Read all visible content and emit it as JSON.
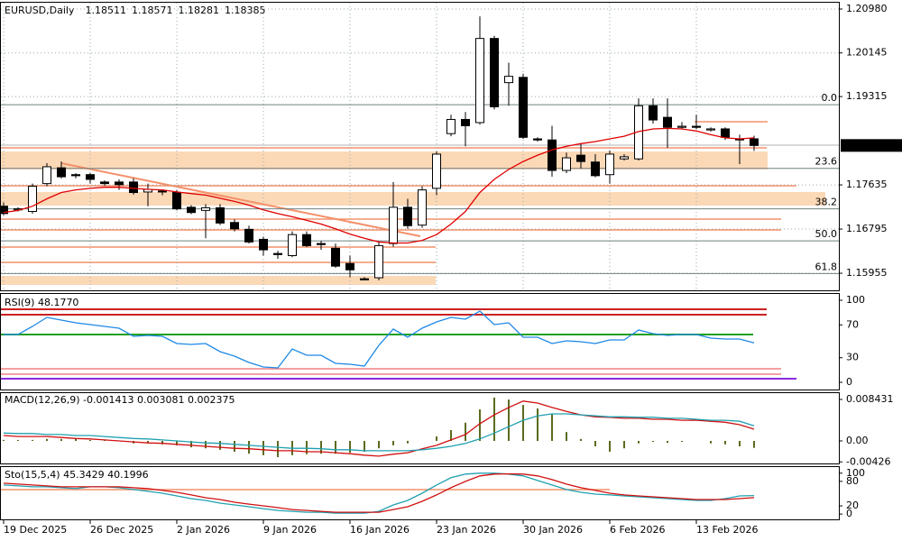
{
  "chart_data": [
    {
      "type": "candlestick",
      "title": "EURUSD,Daily",
      "categories": [
        "19 Dec 2025",
        null,
        null,
        null,
        null,
        null,
        "26 Dec 2025",
        null,
        null,
        null,
        null,
        null,
        "2 Jan 2026",
        null,
        null,
        null,
        null,
        null,
        "9 Jan 2026",
        null,
        null,
        null,
        null,
        null,
        "16 Jan 2026",
        null,
        null,
        null,
        null,
        null,
        "23 Jan 2026",
        null,
        null,
        null,
        null,
        null,
        "30 Jan 2026",
        null,
        null,
        null,
        null,
        null,
        "6 Feb 2026",
        null,
        null,
        null,
        null,
        null,
        "13 Feb 2026",
        null,
        null,
        null,
        null
      ],
      "open": [
        1.1723,
        1.1716,
        1.1713,
        1.1766,
        1.1796,
        1.1783,
        1.1783,
        1.1769,
        1.1769,
        1.1769,
        1.175,
        1.1752,
        1.1749,
        1.1721,
        1.1715,
        1.172,
        1.1692,
        1.1679,
        1.166,
        1.1633,
        1.1629,
        1.1669,
        1.1652,
        1.1643,
        1.1614,
        1.1585,
        1.1587,
        1.1652,
        1.1721,
        1.1687,
        1.1757,
        1.1861,
        1.1888,
        1.1882,
        1.2042,
        1.1958,
        1.1968,
        1.1851,
        1.1849,
        1.1791,
        1.182,
        1.1807,
        1.1783,
        1.1813,
        1.1813,
        1.1914,
        1.1892,
        1.1873,
        1.1875,
        1.1868,
        1.187,
        1.1851,
        1.18511
      ],
      "high": [
        1.173,
        1.1721,
        1.1766,
        1.1805,
        1.1808,
        1.1786,
        1.1786,
        1.1772,
        1.1774,
        1.1776,
        1.1766,
        1.1755,
        1.1754,
        1.1725,
        1.1727,
        1.1727,
        1.1698,
        1.1686,
        1.1665,
        1.1638,
        1.1675,
        1.1675,
        1.1657,
        1.1652,
        1.1629,
        1.1588,
        1.1655,
        1.1769,
        1.1737,
        1.1761,
        1.1827,
        1.1897,
        1.1902,
        1.2084,
        1.2047,
        1.1996,
        1.1975,
        1.1854,
        1.1876,
        1.1825,
        1.1842,
        1.1822,
        1.1829,
        1.1822,
        1.1928,
        1.1928,
        1.1928,
        1.1883,
        1.1897,
        1.1873,
        1.1873,
        1.1859,
        1.18571
      ],
      "low": [
        1.1706,
        1.1713,
        1.1709,
        1.1761,
        1.1776,
        1.1776,
        1.1766,
        1.1762,
        1.1754,
        1.1745,
        1.1723,
        1.1744,
        1.1715,
        1.1708,
        1.1662,
        1.1687,
        1.1675,
        1.1652,
        1.1629,
        1.1623,
        1.1626,
        1.1645,
        1.164,
        1.1606,
        1.1588,
        1.1582,
        1.1582,
        1.1646,
        1.168,
        1.1682,
        1.1744,
        1.1856,
        1.1837,
        1.1878,
        1.1907,
        1.1914,
        1.1851,
        1.1846,
        1.1779,
        1.1786,
        1.1795,
        1.1778,
        1.1766,
        1.181,
        1.181,
        1.188,
        1.1834,
        1.187,
        1.187,
        1.1865,
        1.1849,
        1.1803,
        1.18281
      ],
      "close": [
        1.1709,
        1.1718,
        1.1761,
        1.1798,
        1.1779,
        1.1781,
        1.1774,
        1.1766,
        1.1764,
        1.1749,
        1.1755,
        1.175,
        1.1718,
        1.1711,
        1.172,
        1.1691,
        1.168,
        1.1655,
        1.164,
        1.1631,
        1.1669,
        1.1648,
        1.165,
        1.1609,
        1.1602,
        1.1583,
        1.1648,
        1.1721,
        1.1686,
        1.1754,
        1.1822,
        1.1888,
        1.1876,
        1.2042,
        1.1912,
        1.197,
        1.1854,
        1.1849,
        1.1791,
        1.1815,
        1.1808,
        1.1781,
        1.1822,
        1.1817,
        1.1914,
        1.1887,
        1.1873,
        1.1875,
        1.1873,
        1.187,
        1.1854,
        1.1849,
        1.18385
      ],
      "series": [
        {
          "color": "#e00000",
          "values": [
            1.1711,
            1.1715,
            1.1723,
            1.1737,
            1.1749,
            1.1754,
            1.1757,
            1.1759,
            1.1759,
            1.1757,
            1.1755,
            1.1754,
            1.175,
            1.1747,
            1.1744,
            1.1738,
            1.1732,
            1.1725,
            1.1716,
            1.1709,
            1.1703,
            1.1696,
            1.1689,
            1.168,
            1.167,
            1.1662,
            1.1655,
            1.1653,
            1.1653,
            1.1658,
            1.1669,
            1.1689,
            1.1713,
            1.1749,
            1.1774,
            1.1793,
            1.1808,
            1.182,
            1.183,
            1.1837,
            1.1842,
            1.1846,
            1.1851,
            1.1856,
            1.1865,
            1.187,
            1.1871,
            1.187,
            1.1866,
            1.1859,
            1.1853,
            1.1851,
            1.1853
          ]
        }
      ],
      "fib_levels": [
        {
          "label": "0.0",
          "value": 1.1916
        },
        {
          "label": "23.6",
          "value": 1.1795
        },
        {
          "label": "38.2",
          "value": 1.1718
        },
        {
          "label": "50.0",
          "value": 1.1657
        },
        {
          "label": "61.8",
          "value": 1.1595
        }
      ],
      "ylim": [
        1.1563,
        1.211
      ],
      "yticks": [
        {
          "value": 1.2098,
          "label": "1.20980"
        },
        1.20145,
        1.19315,
        1.17635,
        1.16795,
        1.15955
      ],
      "grid": true
    },
    {
      "type": "line",
      "title": "RSI(9) 48.1770",
      "series": [
        {
          "color": "#1e88e5",
          "values": [
            58.2,
            58.2,
            68.1,
            79.1,
            75.8,
            72.5,
            70.3,
            68.1,
            65.9,
            56.0,
            57.1,
            56.0,
            47.3,
            46.2,
            47.3,
            37.4,
            31.9,
            24.2,
            18.7,
            17.6,
            40.7,
            33.0,
            33.0,
            23.1,
            22.0,
            19.8,
            45.1,
            64.8,
            54.9,
            65.9,
            73.6,
            79.1,
            76.9,
            86.8,
            70.3,
            72.5,
            54.9,
            54.9,
            47.3,
            50.5,
            49.5,
            47.3,
            51.6,
            51.6,
            63.7,
            59.3,
            57.1,
            58.2,
            58.2,
            53.8,
            52.7,
            52.7,
            48.177
          ]
        }
      ],
      "ylim": [
        -8.8,
        107.7
      ],
      "yticks": [
        100,
        70,
        30,
        0
      ]
    },
    {
      "type": "macd",
      "title": "MACD(12,26,9) -0.001413 0.003081 0.002375",
      "histogram": {
        "color": "#5a6b1e",
        "values": [
          0.0002,
          0.0002,
          0.0002,
          0.0004,
          0.0004,
          0.0004,
          0.0002,
          0.0002,
          0,
          -0.0005,
          -0.0005,
          -0.0007,
          -0.0009,
          -0.0013,
          -0.0015,
          -0.0018,
          -0.0022,
          -0.0026,
          -0.0029,
          -0.0033,
          -0.0029,
          -0.0027,
          -0.0026,
          -0.0026,
          -0.0024,
          -0.0022,
          -0.0015,
          -0.0009,
          -0.0005,
          0,
          0.0009,
          0.0022,
          0.0037,
          0.0064,
          0.0088,
          0.0084,
          0.0073,
          0.0066,
          0.0055,
          0.0018,
          0.0004,
          -0.0011,
          -0.0022,
          -0.0015,
          -0.0005,
          -0.0002,
          -0.0004,
          -0.0002,
          0,
          -0.0005,
          -0.0007,
          -0.0011,
          -0.001413
        ]
      },
      "series": [
        {
          "color": "#d01010",
          "values": [
            0.0011,
            0.0009,
            0.0009,
            0.0009,
            0.0007,
            0.0005,
            0.0004,
            0.0002,
            0,
            -0.0002,
            -0.0004,
            -0.0005,
            -0.0007,
            -0.0009,
            -0.0011,
            -0.0013,
            -0.0015,
            -0.0016,
            -0.0018,
            -0.002,
            -0.002,
            -0.0022,
            -0.0022,
            -0.0024,
            -0.0026,
            -0.0029,
            -0.0031,
            -0.0027,
            -0.0024,
            -0.0016,
            -0.0009,
            0.0002,
            0.0013,
            0.0035,
            0.0053,
            0.0068,
            0.0081,
            0.0077,
            0.0068,
            0.006,
            0.0053,
            0.0049,
            0.0048,
            0.0046,
            0.0046,
            0.0044,
            0.0044,
            0.0042,
            0.0042,
            0.004,
            0.0038,
            0.0033,
            0.002375
          ]
        },
        {
          "color": "#20a0b0",
          "values": [
            0.0016,
            0.0015,
            0.0015,
            0.0013,
            0.0013,
            0.0011,
            0.0011,
            0.0009,
            0.0007,
            0.0005,
            0.0004,
            0.0002,
            0,
            -0.0002,
            -0.0004,
            -0.0005,
            -0.0007,
            -0.0009,
            -0.0011,
            -0.0013,
            -0.0015,
            -0.0015,
            -0.0016,
            -0.0018,
            -0.0018,
            -0.002,
            -0.002,
            -0.002,
            -0.002,
            -0.0018,
            -0.0015,
            -0.0011,
            -0.0005,
            0.0004,
            0.0016,
            0.0029,
            0.0042,
            0.0051,
            0.0055,
            0.0055,
            0.0053,
            0.0051,
            0.0049,
            0.0049,
            0.0048,
            0.0048,
            0.0046,
            0.0046,
            0.0044,
            0.0042,
            0.0042,
            0.004,
            0.003081
          ]
        }
      ],
      "ylim": [
        -0.00458,
        0.00971
      ],
      "yticks": [
        0.008431,
        {
          "value": 0,
          "label": "0.00"
        },
        -0.00426
      ]
    },
    {
      "type": "line",
      "title": "Sto(15,5,4) 45.3429 40.1996",
      "series": [
        {
          "color": "#20a0b0",
          "values": [
            71.1,
            68.9,
            66.7,
            66.7,
            64.4,
            62.2,
            66.7,
            66.7,
            64.4,
            60,
            55.6,
            51.1,
            44.4,
            37.8,
            33.3,
            26.7,
            22.2,
            17.8,
            13.3,
            8.9,
            6.7,
            4.4,
            4.4,
            2.2,
            2.2,
            2.2,
            6.7,
            22.2,
            33.3,
            51.1,
            71.1,
            88.9,
            97.8,
            100,
            100,
            97.8,
            93.3,
            82.2,
            71.1,
            60,
            53.3,
            48.9,
            46.7,
            44.4,
            42.2,
            40,
            37.8,
            35.6,
            33.3,
            33.3,
            37.8,
            44.4,
            45.3429
          ]
        },
        {
          "color": "#d01010",
          "values": [
            75.6,
            73.3,
            71.1,
            68.9,
            66.7,
            66.7,
            66.7,
            66.7,
            66.7,
            64.4,
            62.2,
            57.8,
            53.3,
            46.7,
            40,
            35.6,
            28.9,
            24.4,
            20,
            15.6,
            11.1,
            8.9,
            6.7,
            4.4,
            4.4,
            4.4,
            4.4,
            11.1,
            17.8,
            31.1,
            46.7,
            64.4,
            80,
            93.3,
            97.8,
            98.5,
            97.8,
            93.3,
            84.4,
            73.3,
            64.4,
            57.8,
            51.1,
            46.7,
            44.4,
            42.2,
            40,
            37.8,
            35.6,
            35.6,
            35.6,
            37.8,
            40.1996
          ]
        }
      ],
      "ylim": [
        -13,
        115
      ],
      "yticks": [
        100,
        80,
        20,
        0
      ]
    }
  ]
}
